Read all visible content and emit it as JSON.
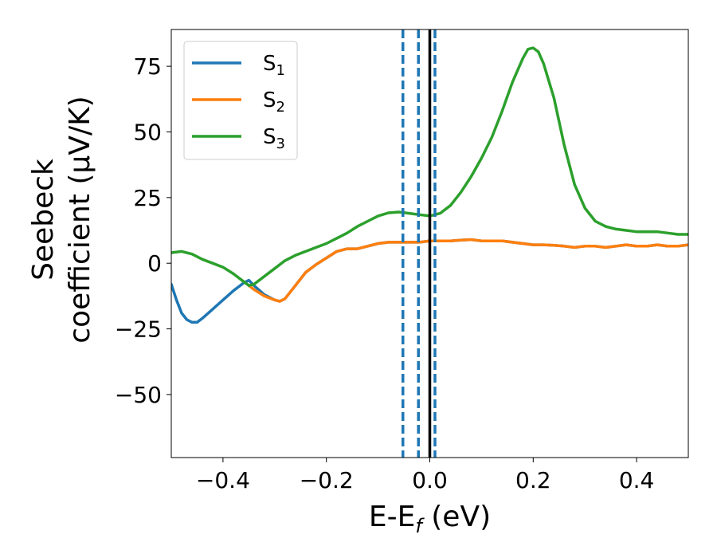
{
  "chart_data": {
    "type": "line",
    "title": "",
    "xlabel": "E-E",
    "xlabel_sub": "f",
    "xlabel_unit": " (eV)",
    "ylabel_line1": "Seebeck",
    "ylabel_line2": "coefficient  (μV/K)",
    "xlim": [
      -0.5,
      0.5
    ],
    "ylim": [
      -74,
      89
    ],
    "xticks": [
      -0.4,
      -0.2,
      0.0,
      0.2,
      0.4
    ],
    "xtick_labels": [
      "−0.4",
      "−0.2",
      "0.0",
      "0.2",
      "0.4"
    ],
    "yticks": [
      -50,
      -25,
      0,
      25,
      50,
      75
    ],
    "ytick_labels": [
      "−50",
      "−25",
      "0",
      "25",
      "50",
      "75"
    ],
    "grid": false,
    "legend_position": "top-left",
    "vertical_lines": [
      {
        "x": -0.052,
        "style": "dashed",
        "color": "#1f77b4"
      },
      {
        "x": -0.022,
        "style": "dashed",
        "color": "#1f77b4"
      },
      {
        "x": 0.01,
        "style": "dashed",
        "color": "#1f77b4"
      },
      {
        "x": 0.0,
        "style": "solid",
        "color": "#000000"
      }
    ],
    "series": [
      {
        "name": "S",
        "sub": "1",
        "color": "#1f77b4",
        "x": [
          -0.5,
          -0.49,
          -0.48,
          -0.47,
          -0.46,
          -0.45,
          -0.44,
          -0.42,
          -0.4,
          -0.38,
          -0.36,
          -0.35,
          -0.34,
          -0.32,
          -0.3,
          -0.29,
          -0.28,
          -0.26,
          -0.24,
          -0.22,
          -0.2,
          -0.18,
          -0.16,
          -0.14,
          -0.12,
          -0.1,
          -0.08,
          -0.06,
          -0.04,
          -0.02,
          0.0,
          0.02,
          0.04,
          0.06,
          0.08,
          0.1,
          0.12,
          0.14,
          0.16,
          0.18,
          0.2,
          0.22,
          0.24,
          0.26,
          0.28,
          0.3,
          0.32,
          0.34,
          0.36,
          0.38,
          0.4,
          0.42,
          0.44,
          0.46,
          0.48,
          0.5
        ],
        "y": [
          -8,
          -14,
          -19,
          -21.5,
          -22.5,
          -22.5,
          -21,
          -17.5,
          -14,
          -10.5,
          -7.5,
          -6.5,
          -8.5,
          -12,
          -14,
          -14.5,
          -13.5,
          -8.5,
          -3.5,
          -0.5,
          2,
          4.5,
          5.5,
          5.5,
          6.5,
          7.5,
          8,
          8,
          8,
          8,
          8.5,
          8.5,
          8.5,
          8.8,
          9,
          8.5,
          8.5,
          8.5,
          8,
          7.5,
          7,
          7,
          6.8,
          6.5,
          6,
          6.5,
          6.5,
          6,
          6.5,
          7,
          6.5,
          6.5,
          7,
          6.5,
          6.5,
          7
        ]
      },
      {
        "name": "S",
        "sub": "2",
        "color": "#ff7f0e",
        "x": [
          -0.35,
          -0.34,
          -0.32,
          -0.3,
          -0.29,
          -0.28,
          -0.26,
          -0.24,
          -0.22,
          -0.2,
          -0.18,
          -0.16,
          -0.14,
          -0.12,
          -0.1,
          -0.08,
          -0.06,
          -0.04,
          -0.02,
          0.0,
          0.02,
          0.04,
          0.06,
          0.08,
          0.1,
          0.12,
          0.14,
          0.16,
          0.18,
          0.2,
          0.22,
          0.24,
          0.26,
          0.28,
          0.3,
          0.32,
          0.34,
          0.36,
          0.38,
          0.4,
          0.42,
          0.44,
          0.46,
          0.48,
          0.5
        ],
        "y": [
          -8.5,
          -10,
          -12.5,
          -14,
          -14.5,
          -13.5,
          -8.5,
          -3.5,
          -0.5,
          2,
          4.5,
          5.5,
          5.5,
          6.5,
          7.5,
          8,
          8,
          8,
          8,
          8.5,
          8.5,
          8.5,
          8.8,
          9,
          8.5,
          8.5,
          8.5,
          8,
          7.5,
          7,
          7,
          6.8,
          6.5,
          6,
          6.5,
          6.5,
          6,
          6.5,
          7,
          6.5,
          6.5,
          7,
          6.5,
          6.5,
          7
        ]
      },
      {
        "name": "S",
        "sub": "3",
        "color": "#2ca02c",
        "x": [
          -0.5,
          -0.48,
          -0.46,
          -0.44,
          -0.42,
          -0.4,
          -0.38,
          -0.36,
          -0.35,
          -0.34,
          -0.32,
          -0.3,
          -0.28,
          -0.26,
          -0.24,
          -0.22,
          -0.2,
          -0.18,
          -0.16,
          -0.14,
          -0.12,
          -0.1,
          -0.08,
          -0.06,
          -0.04,
          -0.02,
          0.0,
          0.02,
          0.04,
          0.06,
          0.08,
          0.1,
          0.12,
          0.14,
          0.16,
          0.18,
          0.19,
          0.2,
          0.21,
          0.22,
          0.24,
          0.26,
          0.28,
          0.3,
          0.32,
          0.34,
          0.36,
          0.38,
          0.4,
          0.42,
          0.44,
          0.46,
          0.48,
          0.5
        ],
        "y": [
          4,
          4.5,
          3.5,
          1.5,
          0,
          -1.5,
          -4,
          -7,
          -8.5,
          -8,
          -5,
          -2,
          1,
          3,
          4.5,
          6,
          7.5,
          9.5,
          11.5,
          14,
          16,
          18,
          19.2,
          19.5,
          19,
          18.5,
          18,
          19,
          22,
          27,
          33,
          40,
          48,
          58,
          69,
          78,
          81.5,
          82,
          80.5,
          76,
          63,
          45,
          30,
          21,
          16,
          14,
          13,
          12.5,
          12,
          12,
          12,
          11.5,
          11,
          11
        ]
      }
    ]
  }
}
